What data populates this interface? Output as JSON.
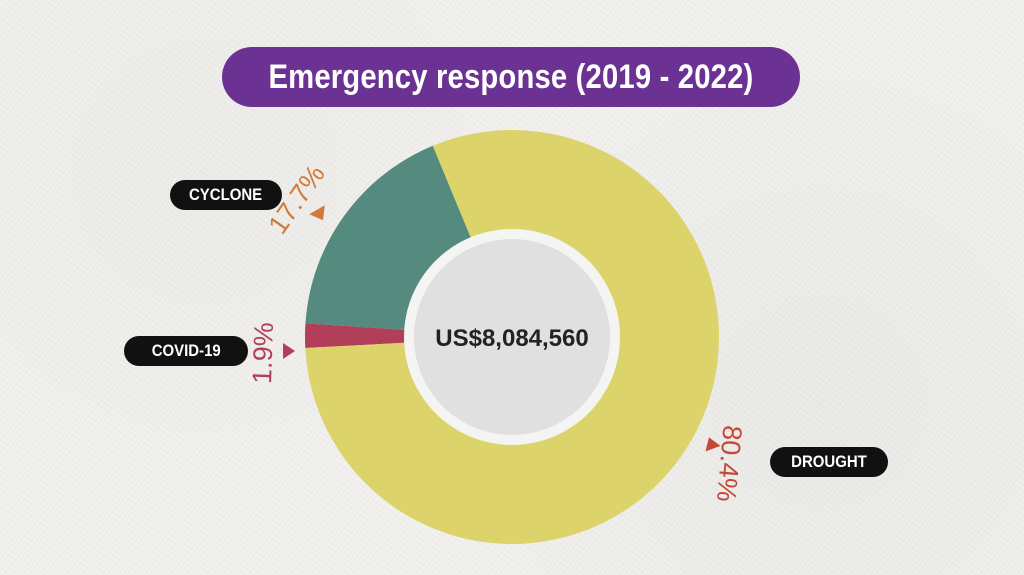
{
  "title": "Emergency response (2019 - 2022)",
  "center_label": "US$8,084,560",
  "colors": {
    "title_bg": "#6b3294",
    "cyclone": "#548b7e",
    "covid": "#b23f5a",
    "drought": "#dcd36b",
    "center": "#e0e0e0",
    "cyclone_pct": "#d27a3a",
    "covid_pct": "#b23f5a",
    "drought_pct": "#c4483a"
  },
  "chart_data": {
    "type": "pie",
    "title": "Emergency response (2019 - 2022)",
    "donut": true,
    "center_text": "US$8,084,560",
    "categories": [
      "CYCLONE",
      "COVID-19",
      "DROUGHT"
    ],
    "values": [
      17.7,
      1.9,
      80.4
    ],
    "value_labels": [
      "17.7%",
      "1.9%",
      "80.4%"
    ]
  }
}
